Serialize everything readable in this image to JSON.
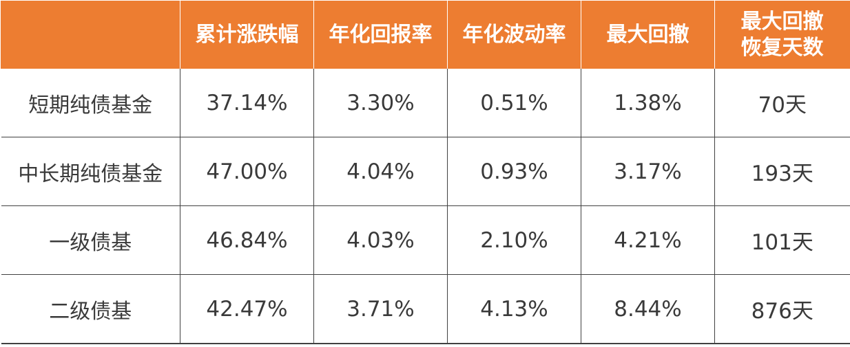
{
  "colors": {
    "header_bg": "#ed7d31",
    "header_text": "#ffffff",
    "body_text": "#3a3a3a",
    "grid": "#404040"
  },
  "chart_data": {
    "type": "table",
    "columns": [
      "",
      "累计涨跌幅",
      "年化回报率",
      "年化波动率",
      "最大回撤",
      "最大回撤恢复天数"
    ],
    "header_lines": [
      [
        ""
      ],
      [
        "累计涨跌幅"
      ],
      [
        "年化回报率"
      ],
      [
        "年化波动率"
      ],
      [
        "最大回撤"
      ],
      [
        "最大回撤",
        "恢复天数"
      ]
    ],
    "rows": [
      [
        "短期纯债基金",
        "37.14%",
        "3.30%",
        "0.51%",
        "1.38%",
        "70天"
      ],
      [
        "中长期纯债基金",
        "47.00%",
        "4.04%",
        "0.93%",
        "3.17%",
        "193天"
      ],
      [
        "一级债基",
        "46.84%",
        "4.03%",
        "2.10%",
        "4.21%",
        "101天"
      ],
      [
        "二级债基",
        "42.47%",
        "3.71%",
        "4.13%",
        "8.44%",
        "876天"
      ]
    ]
  }
}
